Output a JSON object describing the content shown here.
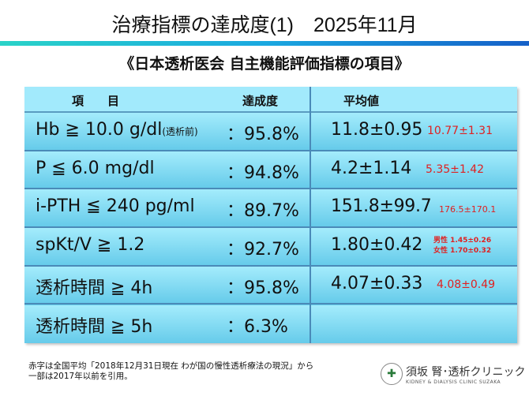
{
  "title": "治療指標の達成度(1)　2025年11月",
  "subtitle": "《日本透析医会 自主機能評価指標の項目》",
  "table": {
    "headers": {
      "item": "項　　目",
      "rate": "達成度",
      "avg": "平均値"
    },
    "rows": [
      {
        "item": "Hb ≧ 10.0 g/dl",
        "item_note": "(透析前)",
        "rate": "：95.8%",
        "avg": "11.8±0.95",
        "national": "10.77±1.31"
      },
      {
        "item": "P ≦ 6.0 mg/dl",
        "rate": "：94.8%",
        "avg": "4.2±1.14",
        "national": "5.35±1.42"
      },
      {
        "item": "i-PTH ≦ 240 pg/ml",
        "rate": "：89.7%",
        "avg": "151.8±99.7",
        "national": "176.5±170.1"
      },
      {
        "item": "spKt/V ≧ 1.2",
        "rate": "：92.7%",
        "avg": "1.80±0.42",
        "national_male": "男性 1.45±0.26",
        "national_female": "女性 1.70±0.32"
      },
      {
        "item": "透析時間 ≧ 4h",
        "rate": "：95.8%",
        "avg": "4.07±0.33",
        "national": "4.08±0.49"
      },
      {
        "item": "透析時間 ≧ 5h",
        "rate": "：6.3%"
      }
    ]
  },
  "note": {
    "line1": "赤字は全国平均「2018年12月31日現在 わが国の慢性透析療法の現況」から",
    "line2": "一部は2017年以前を引用。"
  },
  "logo": {
    "ja": "須坂 腎･透析クリニック",
    "en": "KIDNEY & DIALYSIS CLINIC SUZAKA"
  },
  "colors": {
    "national": "#e02020",
    "header_bg": "#a2eafc"
  }
}
